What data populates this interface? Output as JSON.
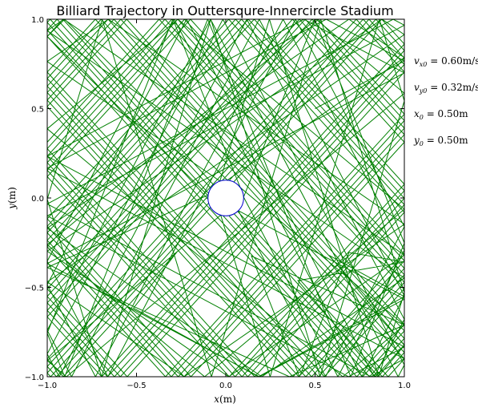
{
  "chart_data": {
    "type": "line",
    "title": "Billiard Trajectory in Outtersqure-Innercircle Stadium",
    "xlabel": "x(m)",
    "ylabel": "y(m)",
    "xlim": [
      -1.0,
      1.0
    ],
    "ylim": [
      -1.0,
      1.0
    ],
    "xticks": [
      "−1.0",
      "−0.5",
      "0.0",
      "0.5",
      "1.0"
    ],
    "yticks": [
      "−1.0",
      "−0.5",
      "0.0",
      "0.5",
      "1.0"
    ],
    "grid": false,
    "legend": "none",
    "inner_circle": {
      "center": [
        0.0,
        0.0
      ],
      "radius": 0.1,
      "color": "#0000cc"
    },
    "trajectory_color": "#008000",
    "initial_conditions": {
      "vx0": 0.6,
      "vy0": 0.32,
      "x0": 0.5,
      "y0": 0.5
    },
    "annotations": [
      "v_{x0} = 0.60m/s",
      "v_{y0} = 0.32m/s",
      "x_0 = 0.50m",
      "y_0 = 0.50m"
    ]
  }
}
